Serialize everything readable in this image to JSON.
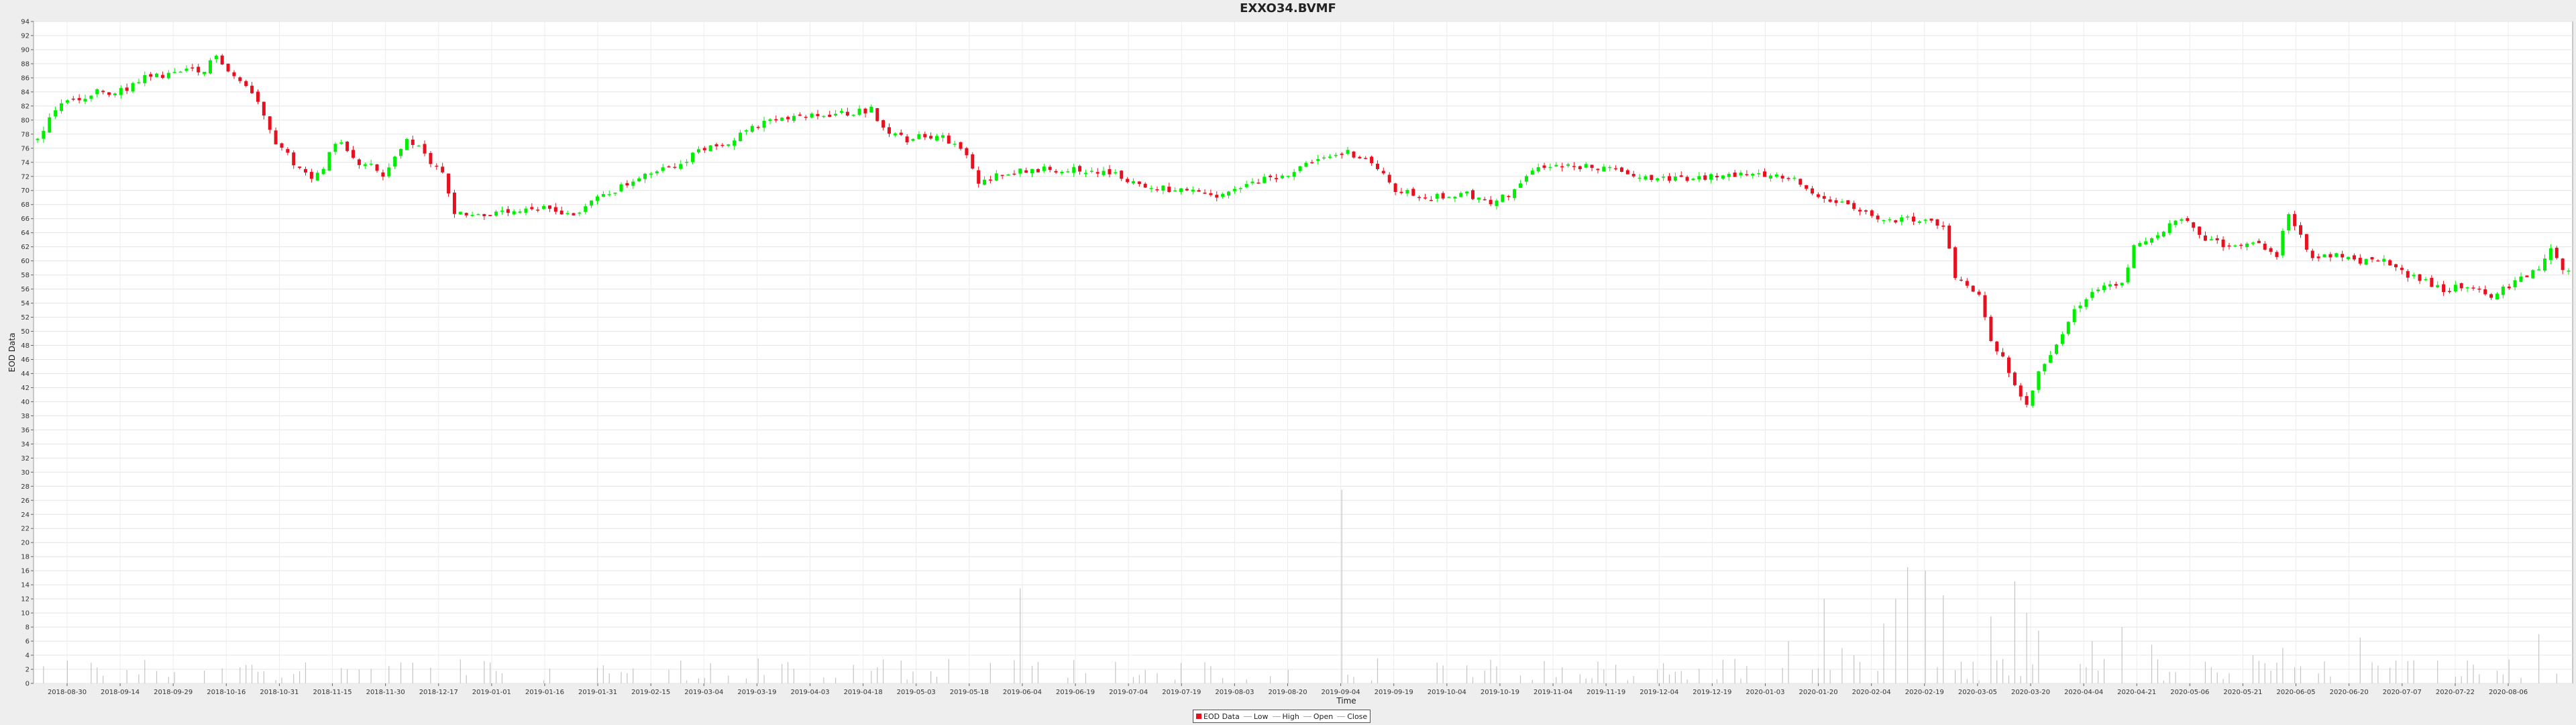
{
  "chart_data": {
    "type": "candlestick",
    "title": "EXXO34.BVMF",
    "xlabel": "Time",
    "ylabel": "EOD Data",
    "ylim": [
      0,
      94
    ],
    "y_ticks": [
      0,
      2,
      4,
      6,
      8,
      10,
      12,
      14,
      16,
      18,
      20,
      22,
      24,
      26,
      28,
      30,
      32,
      34,
      36,
      38,
      40,
      42,
      44,
      46,
      48,
      50,
      52,
      54,
      56,
      58,
      60,
      62,
      64,
      66,
      68,
      70,
      72,
      74,
      76,
      78,
      80,
      82,
      84,
      86,
      88,
      90,
      92,
      94
    ],
    "x_tick_labels": [
      "2018-08-30",
      "2018-09-14",
      "2018-09-29",
      "2018-10-16",
      "2018-10-31",
      "2018-11-15",
      "2018-11-30",
      "2018-12-17",
      "2019-01-01",
      "2019-01-16",
      "2019-01-31",
      "2019-02-15",
      "2019-03-04",
      "2019-03-19",
      "2019-04-03",
      "2019-04-18",
      "2019-05-03",
      "2019-05-18",
      "2019-06-04",
      "2019-06-19",
      "2019-07-04",
      "2019-07-19",
      "2019-08-03",
      "2019-08-20",
      "2019-09-04",
      "2019-09-19",
      "2019-10-04",
      "2019-10-19",
      "2019-11-04",
      "2019-11-19",
      "2019-12-04",
      "2019-12-19",
      "2020-01-03",
      "2020-01-20",
      "2020-02-04",
      "2020-02-19",
      "2020-03-05",
      "2020-03-20",
      "2020-04-04",
      "2020-04-21",
      "2020-05-06",
      "2020-05-21",
      "2020-06-05",
      "2020-06-20",
      "2020-07-07",
      "2020-07-22",
      "2020-08-06"
    ],
    "grid": true,
    "legend_position": "bottom",
    "legend": [
      {
        "name": "EOD Data",
        "color": "#e8101e"
      },
      {
        "name": "Low",
        "color": "#aaaaaa"
      },
      {
        "name": "High",
        "color": "#aaaaaa"
      },
      {
        "name": "Open",
        "color": "#aaaaaa"
      },
      {
        "name": "Close",
        "color": "#aaaaaa"
      }
    ],
    "up_color": "#00ee00",
    "down_color": "#e8101e",
    "price_anchors": [
      [
        0,
        77
      ],
      [
        2,
        80
      ],
      [
        4,
        82.5
      ],
      [
        8,
        83
      ],
      [
        10,
        84
      ],
      [
        12,
        83.5
      ],
      [
        15,
        84.5
      ],
      [
        18,
        86
      ],
      [
        22,
        86.5
      ],
      [
        26,
        87
      ],
      [
        28,
        86.5
      ],
      [
        29,
        88.5
      ],
      [
        30,
        89.5
      ],
      [
        32,
        87
      ],
      [
        34,
        85.5
      ],
      [
        36,
        84
      ],
      [
        38,
        81
      ],
      [
        40,
        77
      ],
      [
        42,
        75
      ],
      [
        44,
        73
      ],
      [
        46,
        71.5
      ],
      [
        48,
        73.5
      ],
      [
        50,
        77
      ],
      [
        52,
        76
      ],
      [
        54,
        74
      ],
      [
        56,
        73.5
      ],
      [
        58,
        72
      ],
      [
        60,
        75
      ],
      [
        62,
        77
      ],
      [
        64,
        76
      ],
      [
        66,
        74
      ],
      [
        68,
        72.5
      ],
      [
        70,
        67
      ],
      [
        74,
        66.5
      ],
      [
        80,
        66.8
      ],
      [
        86,
        67.5
      ],
      [
        90,
        66.5
      ],
      [
        94,
        69
      ],
      [
        98,
        70.5
      ],
      [
        102,
        72
      ],
      [
        108,
        74
      ],
      [
        112,
        76
      ],
      [
        116,
        77
      ],
      [
        120,
        79
      ],
      [
        124,
        80
      ],
      [
        130,
        80.5
      ],
      [
        136,
        81
      ],
      [
        140,
        81.5
      ],
      [
        142,
        79
      ],
      [
        146,
        77
      ],
      [
        148,
        78
      ],
      [
        152,
        77.5
      ],
      [
        156,
        75
      ],
      [
        158,
        71
      ],
      [
        162,
        72.5
      ],
      [
        168,
        73
      ],
      [
        174,
        73
      ],
      [
        180,
        72.5
      ],
      [
        186,
        70.5
      ],
      [
        192,
        70
      ],
      [
        198,
        69
      ],
      [
        204,
        71
      ],
      [
        210,
        72.5
      ],
      [
        216,
        74.5
      ],
      [
        220,
        75.5
      ],
      [
        224,
        74
      ],
      [
        228,
        70
      ],
      [
        234,
        69
      ],
      [
        240,
        69.5
      ],
      [
        244,
        68
      ],
      [
        248,
        70
      ],
      [
        252,
        73.5
      ],
      [
        258,
        73.5
      ],
      [
        264,
        73
      ],
      [
        270,
        72
      ],
      [
        276,
        71.5
      ],
      [
        282,
        72
      ],
      [
        288,
        72.5
      ],
      [
        294,
        72
      ],
      [
        300,
        69
      ],
      [
        306,
        67
      ],
      [
        310,
        65.5
      ],
      [
        314,
        66
      ],
      [
        320,
        65
      ],
      [
        322,
        58
      ],
      [
        326,
        55
      ],
      [
        328,
        49
      ],
      [
        330,
        46
      ],
      [
        332,
        42
      ],
      [
        334,
        40
      ],
      [
        336,
        44
      ],
      [
        338,
        47
      ],
      [
        342,
        53
      ],
      [
        344,
        55
      ],
      [
        346,
        56
      ],
      [
        350,
        57
      ],
      [
        352,
        62
      ],
      [
        356,
        64
      ],
      [
        360,
        66
      ],
      [
        364,
        63
      ],
      [
        368,
        62
      ],
      [
        372,
        63
      ],
      [
        376,
        61
      ],
      [
        378,
        67
      ],
      [
        382,
        60
      ],
      [
        386,
        61
      ],
      [
        390,
        60
      ],
      [
        394,
        60
      ],
      [
        398,
        58
      ],
      [
        404,
        56
      ],
      [
        408,
        56.5
      ],
      [
        412,
        55
      ],
      [
        416,
        57
      ],
      [
        420,
        59
      ],
      [
        422,
        61.5
      ],
      [
        424,
        59
      ]
    ],
    "volume_spikes": [
      [
        165,
        13.5
      ],
      [
        219,
        27.5
      ],
      [
        294,
        6
      ],
      [
        300,
        12
      ],
      [
        303,
        5
      ],
      [
        305,
        4
      ],
      [
        310,
        8.5
      ],
      [
        312,
        12
      ],
      [
        314,
        16.5
      ],
      [
        317,
        16
      ],
      [
        320,
        12.5
      ],
      [
        328,
        9.5
      ],
      [
        332,
        14.5
      ],
      [
        334,
        10
      ],
      [
        336,
        7.5
      ],
      [
        345,
        6
      ],
      [
        350,
        8
      ],
      [
        355,
        5.5
      ],
      [
        372,
        4
      ],
      [
        377,
        5
      ],
      [
        390,
        6.5
      ],
      [
        420,
        7
      ]
    ]
  }
}
